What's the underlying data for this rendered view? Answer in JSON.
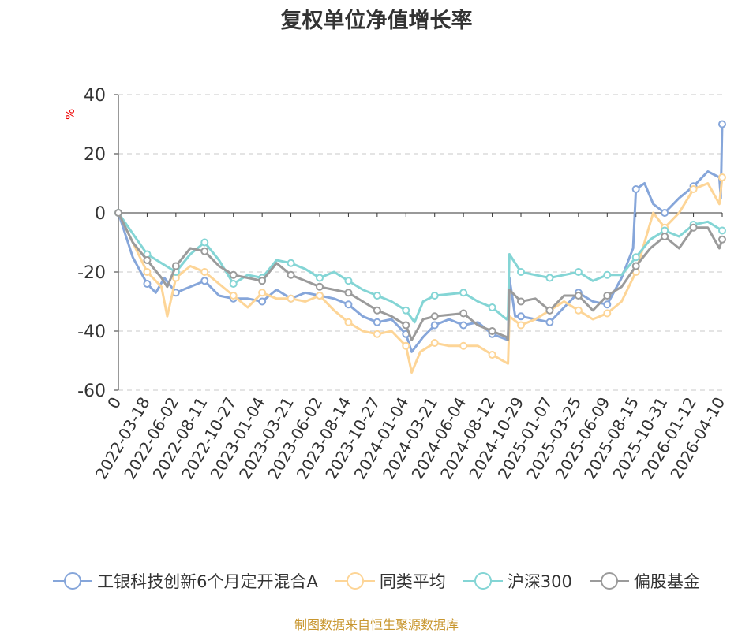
{
  "chart_data": {
    "type": "line",
    "title": "复权单位净值增长率",
    "ylabel": "%",
    "xlabel": "",
    "ylim": [
      -60,
      40
    ],
    "yticks": [
      40,
      20,
      0,
      -20,
      -40,
      -60
    ],
    "grid": true,
    "legend_position": "bottom",
    "x_unit_note": "x values are positions in tick-label index units",
    "categories": [
      "0",
      "2022-03-18",
      "2022-06-02",
      "2022-08-11",
      "2022-10-27",
      "2023-01-04",
      "2023-03-21",
      "2023-06-02",
      "2023-08-14",
      "2023-10-27",
      "2024-01-04",
      "2024-03-21",
      "2024-06-04",
      "2024-08-12",
      "2024-10-29",
      "2025-01-07",
      "2025-03-25",
      "2025-06-09",
      "2025-08-15",
      "2025-10-31",
      "2026-01-12",
      "2026-04-10"
    ],
    "series": [
      {
        "name": "工银科技创新6个月定开混合A",
        "color": "#86a6da",
        "points": [
          [
            0,
            0
          ],
          [
            0.5,
            -15
          ],
          [
            1,
            -24
          ],
          [
            1.3,
            -27
          ],
          [
            1.6,
            -22
          ],
          [
            2,
            -27
          ],
          [
            2.5,
            -25
          ],
          [
            3,
            -23
          ],
          [
            3.5,
            -28
          ],
          [
            4,
            -29
          ],
          [
            4.5,
            -29
          ],
          [
            5,
            -30
          ],
          [
            5.5,
            -26
          ],
          [
            6,
            -29
          ],
          [
            6.5,
            -27
          ],
          [
            7,
            -28
          ],
          [
            7.5,
            -29
          ],
          [
            8,
            -31
          ],
          [
            8.5,
            -35
          ],
          [
            9,
            -37
          ],
          [
            9.5,
            -36
          ],
          [
            10,
            -41
          ],
          [
            10.2,
            -47
          ],
          [
            10.6,
            -42
          ],
          [
            11,
            -38
          ],
          [
            11.5,
            -36
          ],
          [
            12,
            -38
          ],
          [
            12.5,
            -37
          ],
          [
            13,
            -41
          ],
          [
            13.55,
            -43
          ],
          [
            13.6,
            -22
          ],
          [
            13.8,
            -35
          ],
          [
            14,
            -35
          ],
          [
            14.5,
            -36
          ],
          [
            15,
            -37
          ],
          [
            15.5,
            -32
          ],
          [
            16,
            -27
          ],
          [
            16.5,
            -30
          ],
          [
            17,
            -31
          ],
          [
            17.5,
            -22
          ],
          [
            17.9,
            -12
          ],
          [
            18,
            8
          ],
          [
            18.3,
            10
          ],
          [
            18.6,
            3
          ],
          [
            19,
            0
          ],
          [
            19.5,
            5
          ],
          [
            20,
            9
          ],
          [
            20.5,
            14
          ],
          [
            20.9,
            12
          ],
          [
            20.95,
            5
          ],
          [
            21,
            30
          ]
        ]
      },
      {
        "name": "同类平均",
        "color": "#fdd597",
        "points": [
          [
            0,
            0
          ],
          [
            0.5,
            -10
          ],
          [
            1,
            -20
          ],
          [
            1.5,
            -25
          ],
          [
            1.7,
            -35
          ],
          [
            2,
            -22
          ],
          [
            2.5,
            -18
          ],
          [
            3,
            -20
          ],
          [
            3.5,
            -24
          ],
          [
            4,
            -28
          ],
          [
            4.5,
            -32
          ],
          [
            5,
            -27
          ],
          [
            5.5,
            -29
          ],
          [
            6,
            -29
          ],
          [
            6.5,
            -30
          ],
          [
            7,
            -28
          ],
          [
            7.5,
            -33
          ],
          [
            8,
            -37
          ],
          [
            8.5,
            -40
          ],
          [
            9,
            -41
          ],
          [
            9.5,
            -40
          ],
          [
            10,
            -45
          ],
          [
            10.2,
            -54
          ],
          [
            10.5,
            -47
          ],
          [
            11,
            -44
          ],
          [
            11.5,
            -45
          ],
          [
            12,
            -45
          ],
          [
            12.5,
            -45
          ],
          [
            13,
            -48
          ],
          [
            13.55,
            -51
          ],
          [
            13.6,
            -35
          ],
          [
            14,
            -38
          ],
          [
            14.5,
            -36
          ],
          [
            15,
            -33
          ],
          [
            15.5,
            -30
          ],
          [
            16,
            -33
          ],
          [
            16.5,
            -36
          ],
          [
            17,
            -34
          ],
          [
            17.5,
            -30
          ],
          [
            18,
            -20
          ],
          [
            18.3,
            -10
          ],
          [
            18.6,
            0
          ],
          [
            19,
            -5
          ],
          [
            19.5,
            0
          ],
          [
            20,
            8
          ],
          [
            20.5,
            10
          ],
          [
            20.9,
            3
          ],
          [
            21,
            12
          ]
        ]
      },
      {
        "name": "沪深300",
        "color": "#84d5d5",
        "points": [
          [
            0,
            0
          ],
          [
            0.5,
            -7
          ],
          [
            1,
            -14
          ],
          [
            1.5,
            -17
          ],
          [
            2,
            -20
          ],
          [
            2.5,
            -14
          ],
          [
            3,
            -10
          ],
          [
            3.5,
            -16
          ],
          [
            4,
            -24
          ],
          [
            4.5,
            -21
          ],
          [
            5,
            -22
          ],
          [
            5.5,
            -16
          ],
          [
            6,
            -17
          ],
          [
            6.5,
            -19
          ],
          [
            7,
            -22
          ],
          [
            7.5,
            -20
          ],
          [
            8,
            -23
          ],
          [
            8.5,
            -26
          ],
          [
            9,
            -28
          ],
          [
            9.5,
            -30
          ],
          [
            10,
            -33
          ],
          [
            10.3,
            -37
          ],
          [
            10.6,
            -30
          ],
          [
            11,
            -28
          ],
          [
            12,
            -27
          ],
          [
            12.5,
            -30
          ],
          [
            13,
            -32
          ],
          [
            13.5,
            -36
          ],
          [
            13.55,
            -35
          ],
          [
            13.6,
            -14
          ],
          [
            14,
            -20
          ],
          [
            14.5,
            -21
          ],
          [
            15,
            -22
          ],
          [
            15.5,
            -21
          ],
          [
            16,
            -20
          ],
          [
            16.5,
            -23
          ],
          [
            17,
            -21
          ],
          [
            17.5,
            -21
          ],
          [
            18,
            -15
          ],
          [
            18.5,
            -9
          ],
          [
            19,
            -6
          ],
          [
            19.5,
            -8
          ],
          [
            20,
            -4
          ],
          [
            20.5,
            -3
          ],
          [
            21,
            -6
          ]
        ]
      },
      {
        "name": "偏股基金",
        "color": "#9b9b9b",
        "points": [
          [
            0,
            0
          ],
          [
            0.5,
            -10
          ],
          [
            1,
            -16
          ],
          [
            1.5,
            -22
          ],
          [
            1.7,
            -25
          ],
          [
            2,
            -18
          ],
          [
            2.5,
            -12
          ],
          [
            3,
            -13
          ],
          [
            3.5,
            -18
          ],
          [
            4,
            -21
          ],
          [
            4.5,
            -22
          ],
          [
            5,
            -23
          ],
          [
            5.5,
            -17
          ],
          [
            6,
            -21
          ],
          [
            6.5,
            -23
          ],
          [
            7,
            -25
          ],
          [
            7.5,
            -26
          ],
          [
            8,
            -27
          ],
          [
            8.5,
            -30
          ],
          [
            9,
            -33
          ],
          [
            9.5,
            -35
          ],
          [
            10,
            -38
          ],
          [
            10.2,
            -43
          ],
          [
            10.6,
            -36
          ],
          [
            11,
            -35
          ],
          [
            12,
            -34
          ],
          [
            12.5,
            -38
          ],
          [
            13,
            -40
          ],
          [
            13.5,
            -42
          ],
          [
            13.55,
            -43
          ],
          [
            13.6,
            -26
          ],
          [
            14,
            -30
          ],
          [
            14.5,
            -29
          ],
          [
            15,
            -33
          ],
          [
            15.5,
            -28
          ],
          [
            16,
            -28
          ],
          [
            16.5,
            -33
          ],
          [
            17,
            -28
          ],
          [
            17.5,
            -25
          ],
          [
            18,
            -18
          ],
          [
            18.5,
            -12
          ],
          [
            19,
            -8
          ],
          [
            19.5,
            -12
          ],
          [
            20,
            -5
          ],
          [
            20.5,
            -5
          ],
          [
            20.9,
            -12
          ],
          [
            21,
            -9
          ]
        ]
      }
    ]
  },
  "source": "制图数据来自恒生聚源数据库"
}
